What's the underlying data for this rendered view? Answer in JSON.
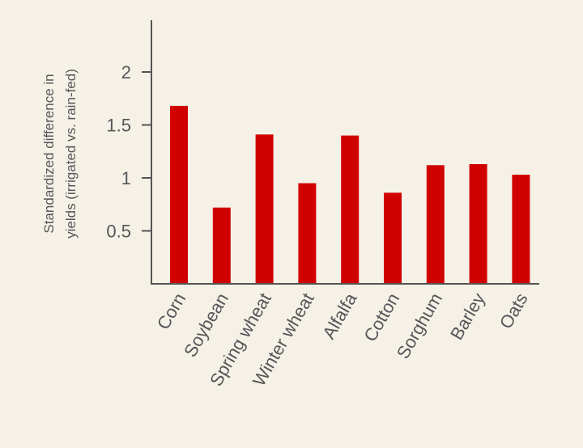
{
  "colors": {
    "background": "#f5f1e6",
    "bar": "#d10000",
    "axis": "#555555",
    "text": "#55565a"
  },
  "chart_data": {
    "type": "bar",
    "title": "",
    "xlabel": "",
    "ylabel": [
      "Standardized difference in",
      "yields (irrigated vs. rain-fed)"
    ],
    "categories": [
      "Corn",
      "Soybean",
      "Spring wheat",
      "Winter wheat",
      "Alfalfa",
      "Cotton",
      "Sorghum",
      "Barley",
      "Oats"
    ],
    "values": [
      1.68,
      0.72,
      1.41,
      0.95,
      1.4,
      0.86,
      1.12,
      1.13,
      1.03
    ],
    "yticks": [
      "0.5",
      "1",
      "1.5",
      "2"
    ],
    "ylim": [
      0,
      2.5
    ],
    "grid": false,
    "legend": "none"
  }
}
